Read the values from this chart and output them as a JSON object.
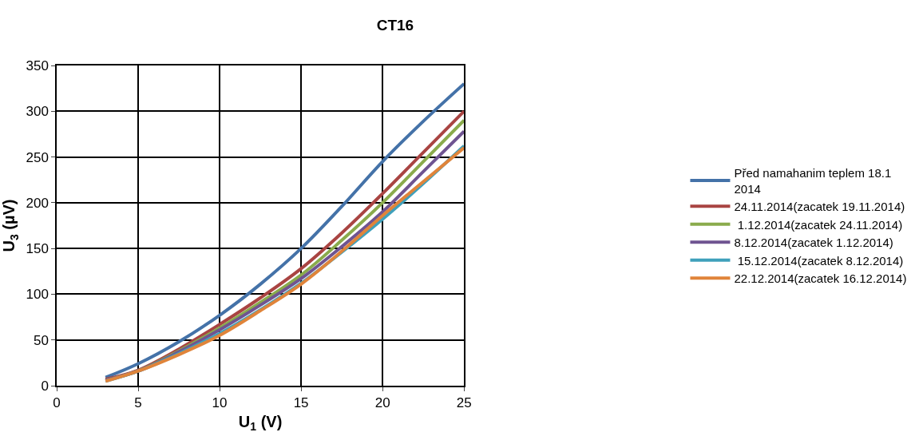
{
  "chart_data": {
    "type": "line",
    "title": "CT16",
    "xlabel": "U$_{1}$ (V)",
    "ylabel": "U$_{3}$ (µV)",
    "x": [
      3,
      5,
      7.5,
      10,
      12.5,
      15,
      17.5,
      20,
      22.5,
      25
    ],
    "xlim": [
      0,
      25
    ],
    "xticks": [
      0,
      5,
      10,
      15,
      20,
      25
    ],
    "ylim": [
      0,
      350
    ],
    "yticks": [
      0,
      50,
      100,
      150,
      200,
      250,
      300,
      350
    ],
    "grid": true,
    "legend": "right",
    "marker": "none",
    "line_style": "solid",
    "series": [
      {
        "name": "Před namahanim teplem 18.1 2014",
        "color": "#4472a8",
        "values": [
          9,
          24,
          48,
          77,
          111,
          150,
          196,
          245,
          289,
          330
        ]
      },
      {
        "name": "24.11.2014(zacatek 19.11.2014)",
        "color": "#a94442",
        "values": [
          7,
          17,
          40,
          67,
          96,
          128,
          167,
          210,
          255,
          300
        ]
      },
      {
        "name": " 1.12.2014(zacatek 24.11.2014)",
        "color": "#8aab4c",
        "values": [
          6,
          16,
          38,
          63,
          91,
          121,
          159,
          200,
          245,
          290
        ]
      },
      {
        "name": "8.12.2014(zacatek 1.12.2014)",
        "color": "#6f5491",
        "values": [
          6,
          16,
          37,
          61,
          88,
          117,
          152,
          190,
          234,
          278
        ]
      },
      {
        "name": " 15.12.2014(zacatek 8.12.2014)",
        "color": "#3fa0bb",
        "values": [
          5,
          16,
          35,
          57,
          83,
          112,
          146,
          182,
          221,
          262
        ]
      },
      {
        "name": "22.12.2014(zacatek 16.12.2014)",
        "color": "#e0843a",
        "values": [
          5,
          16,
          34,
          55,
          82,
          111,
          147,
          186,
          223,
          260
        ]
      }
    ]
  }
}
